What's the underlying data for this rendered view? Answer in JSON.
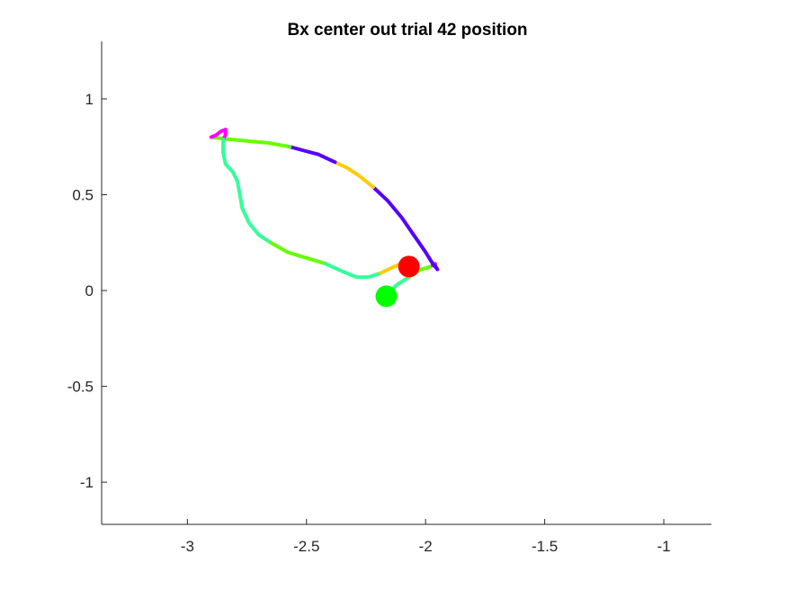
{
  "chart_data": {
    "type": "line",
    "title": "Bx  center out trial 42 position",
    "xlabel": "",
    "ylabel": "",
    "xlim": [
      -3.36,
      -0.8
    ],
    "ylim": [
      -1.22,
      1.3
    ],
    "x_ticks": [
      -3,
      -2.5,
      -2,
      -1.5,
      -1
    ],
    "x_tick_labels": [
      "-3",
      "-2.5",
      "-2",
      "-1.5",
      "-1"
    ],
    "y_ticks": [
      -1,
      -0.5,
      0,
      0.5,
      1
    ],
    "y_tick_labels": [
      "-1",
      "-0.5",
      "0",
      "0.5",
      "1"
    ],
    "grid": false,
    "legend": "none",
    "box": "left-bottom axes only",
    "series": [
      {
        "color": "#33ff99",
        "points": [
          [
            -2.17,
            -0.03
          ],
          [
            -2.12,
            0.03
          ],
          [
            -2.07,
            0.07
          ]
        ]
      },
      {
        "color": "#66ff00",
        "points": [
          [
            -2.07,
            0.07
          ],
          [
            -2.02,
            0.11
          ],
          [
            -1.99,
            0.12
          ],
          [
            -1.97,
            0.13
          ]
        ]
      },
      {
        "color": "#ff00ff",
        "points": [
          [
            -1.97,
            0.13
          ],
          [
            -1.96,
            0.14
          ]
        ]
      },
      {
        "color": "#5500ff",
        "points": [
          [
            -1.96,
            0.13
          ],
          [
            -1.95,
            0.11
          ],
          [
            -1.97,
            0.14
          ],
          [
            -2.0,
            0.2
          ],
          [
            -2.05,
            0.29
          ],
          [
            -2.1,
            0.38
          ],
          [
            -2.16,
            0.47
          ],
          [
            -2.22,
            0.54
          ]
        ]
      },
      {
        "color": "#ffcc00",
        "points": [
          [
            -2.22,
            0.54
          ],
          [
            -2.28,
            0.6
          ],
          [
            -2.33,
            0.64
          ],
          [
            -2.38,
            0.67
          ]
        ]
      },
      {
        "color": "#5500ff",
        "points": [
          [
            -2.38,
            0.67
          ],
          [
            -2.45,
            0.71
          ],
          [
            -2.51,
            0.73
          ],
          [
            -2.57,
            0.75
          ]
        ]
      },
      {
        "color": "#66ff00",
        "points": [
          [
            -2.57,
            0.75
          ],
          [
            -2.66,
            0.77
          ],
          [
            -2.75,
            0.78
          ],
          [
            -2.83,
            0.79
          ],
          [
            -2.9,
            0.8
          ]
        ]
      },
      {
        "color": "#ff00ff",
        "points": [
          [
            -2.9,
            0.8
          ],
          [
            -2.88,
            0.81
          ],
          [
            -2.86,
            0.83
          ],
          [
            -2.84,
            0.84
          ],
          [
            -2.84,
            0.81
          ],
          [
            -2.85,
            0.79
          ]
        ]
      },
      {
        "color": "#33ff99",
        "points": [
          [
            -2.85,
            0.79
          ],
          [
            -2.85,
            0.72
          ],
          [
            -2.84,
            0.66
          ],
          [
            -2.81,
            0.62
          ],
          [
            -2.79,
            0.57
          ],
          [
            -2.78,
            0.5
          ],
          [
            -2.77,
            0.43
          ],
          [
            -2.74,
            0.35
          ],
          [
            -2.7,
            0.29
          ],
          [
            -2.65,
            0.25
          ]
        ]
      },
      {
        "color": "#66ff00",
        "points": [
          [
            -2.65,
            0.25
          ],
          [
            -2.58,
            0.2
          ],
          [
            -2.5,
            0.17
          ],
          [
            -2.42,
            0.14
          ]
        ]
      },
      {
        "color": "#33ff99",
        "points": [
          [
            -2.42,
            0.14
          ],
          [
            -2.35,
            0.1
          ],
          [
            -2.29,
            0.07
          ],
          [
            -2.24,
            0.07
          ],
          [
            -2.19,
            0.09
          ]
        ]
      },
      {
        "color": "#ffcc00",
        "points": [
          [
            -2.19,
            0.09
          ],
          [
            -2.14,
            0.12
          ],
          [
            -2.1,
            0.14
          ]
        ]
      }
    ],
    "markers": [
      {
        "x": -2.07,
        "y": 0.125,
        "color": "#ff0000"
      },
      {
        "x": -2.165,
        "y": -0.03,
        "color": "#00ff00"
      }
    ]
  }
}
